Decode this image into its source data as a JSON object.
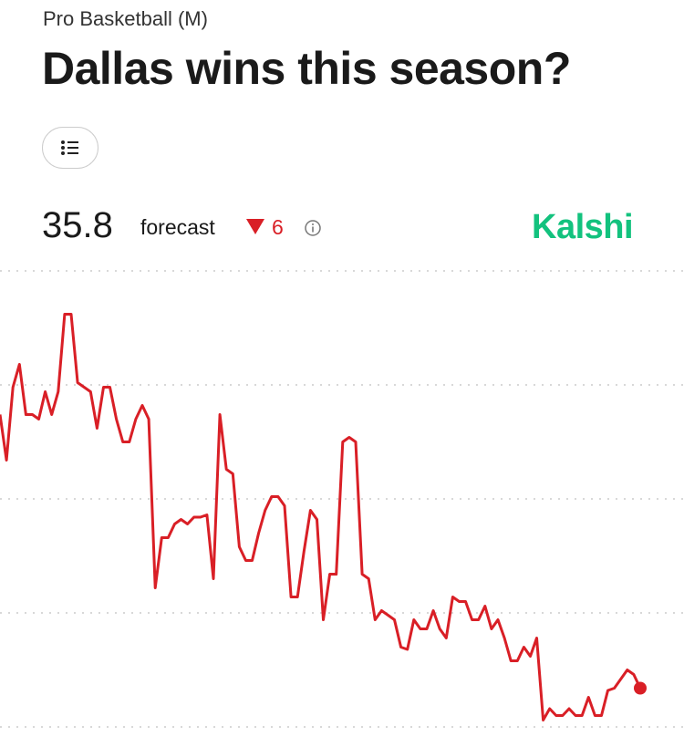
{
  "header": {
    "category": "Pro Basketball (M)",
    "title": "Dallas wins this season?"
  },
  "forecast": {
    "value": "35.8",
    "label": "forecast",
    "change": "6",
    "source": "Kalshi"
  },
  "chart_data": {
    "type": "line",
    "color": "#d91f26",
    "ylim": [
      32.4,
      72.4
    ],
    "values": [
      59.8,
      55.8,
      62.2,
      64.2,
      59.8,
      59.8,
      59.4,
      61.8,
      59.8,
      61.8,
      68.6,
      68.6,
      62.6,
      62.2,
      61.8,
      58.6,
      62.2,
      62.2,
      59.4,
      57.4,
      57.4,
      59.4,
      60.6,
      59.4,
      44.6,
      49.0,
      49.0,
      50.2,
      50.6,
      50.2,
      50.8,
      50.8,
      51.0,
      45.4,
      59.8,
      55.0,
      54.6,
      48.2,
      47.0,
      47.0,
      49.4,
      51.4,
      52.6,
      52.6,
      51.8,
      43.8,
      43.8,
      47.8,
      51.4,
      50.6,
      41.8,
      45.8,
      45.8,
      57.4,
      57.8,
      57.4,
      45.8,
      45.4,
      41.8,
      42.6,
      42.2,
      41.8,
      39.4,
      39.2,
      41.8,
      41.0,
      41.0,
      42.6,
      41.0,
      40.2,
      43.8,
      43.4,
      43.4,
      41.8,
      41.8,
      43.0,
      41.0,
      41.8,
      40.2,
      38.2,
      38.2,
      39.4,
      38.6,
      40.2,
      33.0,
      34.0,
      33.4,
      33.4,
      34.0,
      33.4,
      33.4,
      35.0,
      33.4,
      33.4,
      35.6,
      35.8,
      36.6,
      37.4,
      37.0,
      35.8
    ]
  }
}
